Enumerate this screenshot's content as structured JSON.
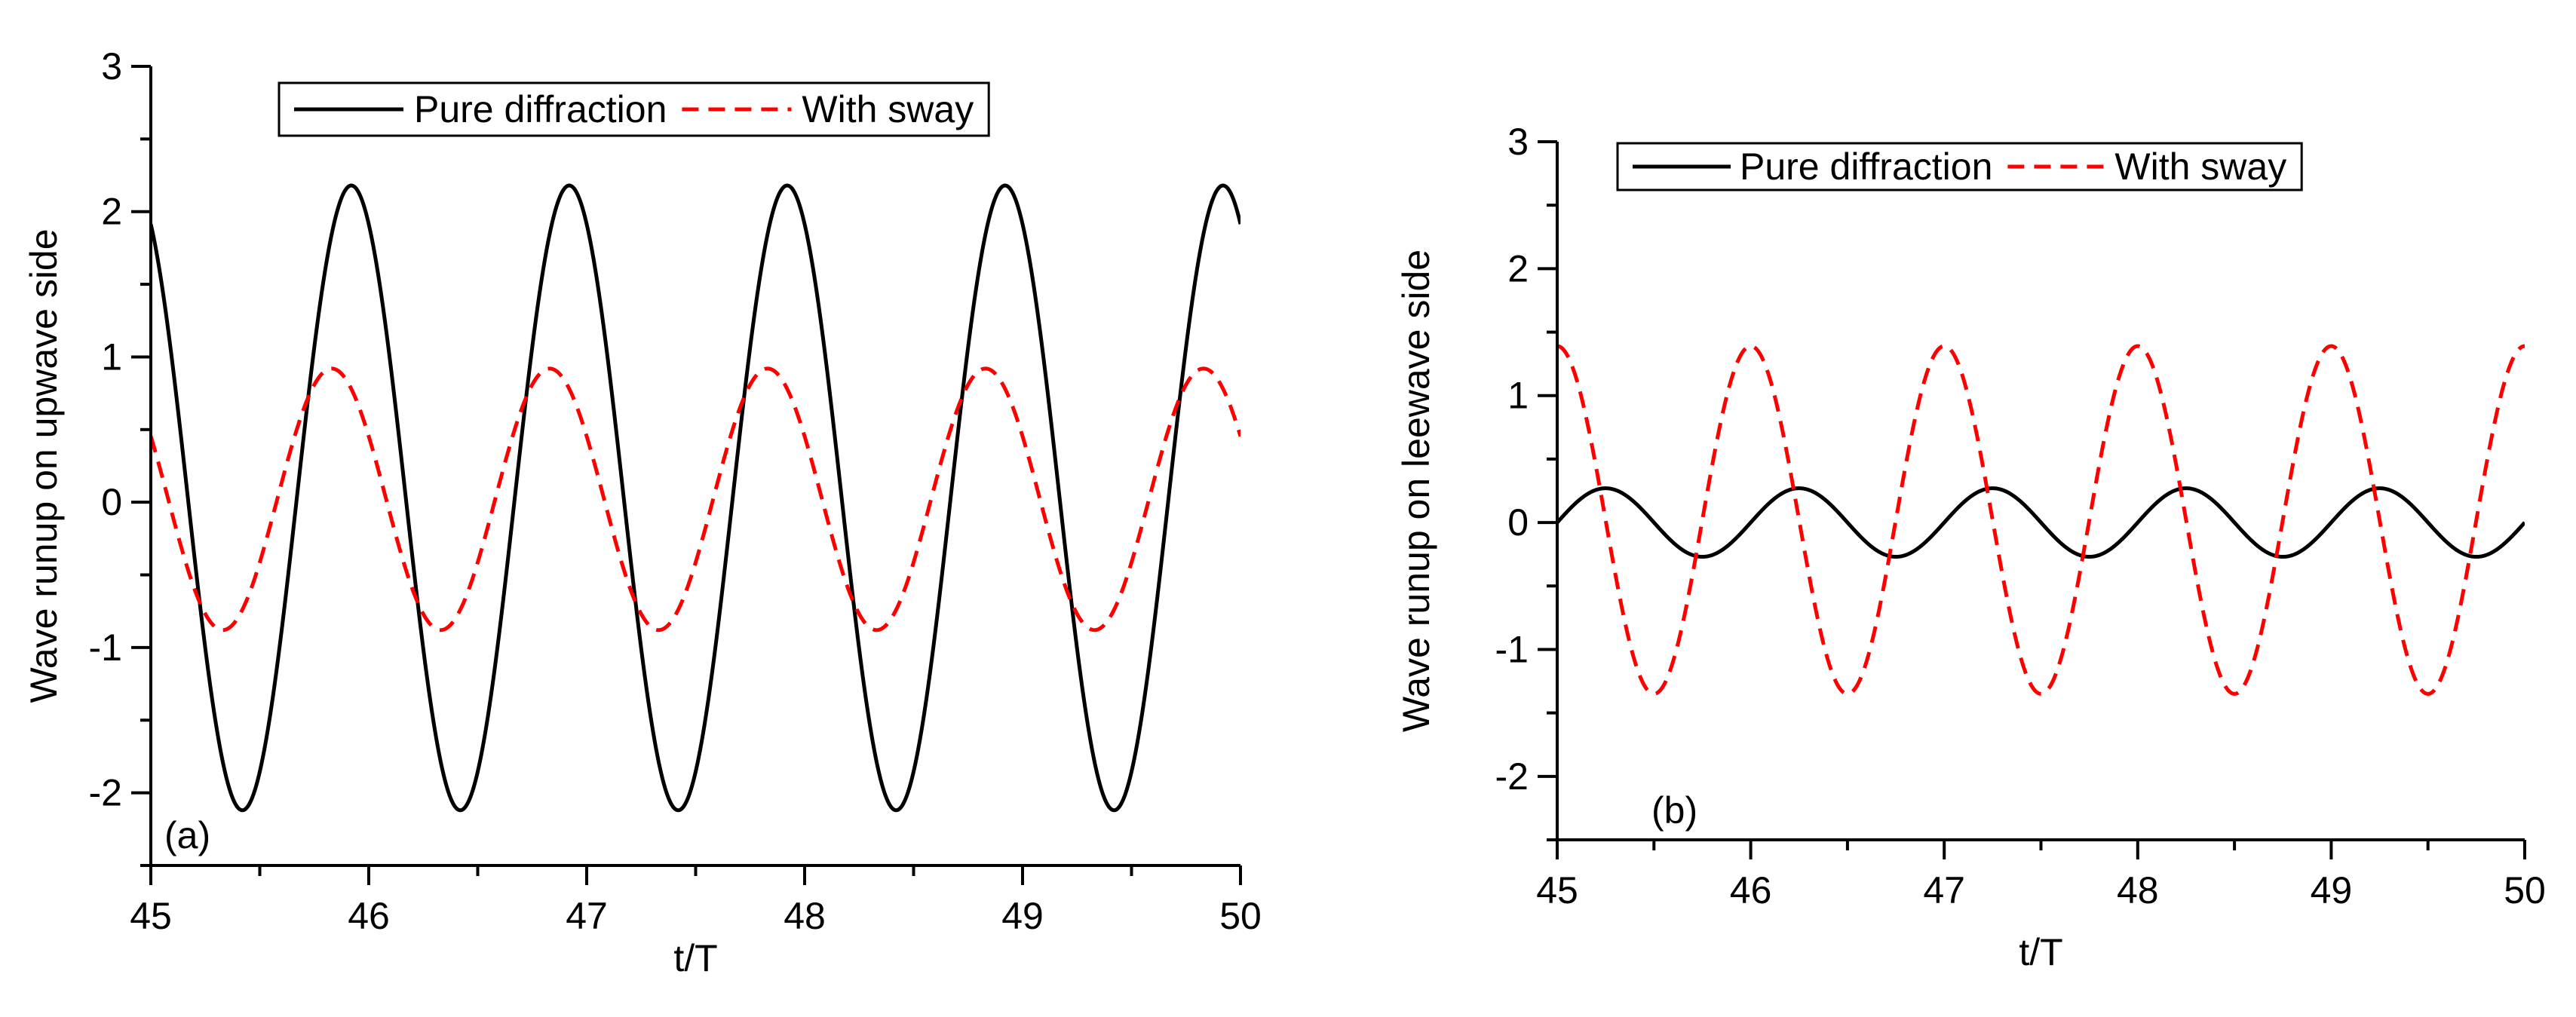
{
  "chart_data": [
    {
      "type": "line",
      "panel_label": "(a)",
      "xlabel": "t/T",
      "ylabel": "Wave runup on upwave side",
      "xlim": [
        45,
        50
      ],
      "ylim": [
        -2.5,
        3
      ],
      "x_ticks": [
        45,
        46,
        47,
        48,
        49,
        50
      ],
      "y_ticks": [
        -2,
        -1,
        0,
        1,
        2,
        3
      ],
      "legend": {
        "position": "top-center",
        "boxed": true
      },
      "series": [
        {
          "name": "Pure diffraction",
          "style": "solid",
          "color": "#000000",
          "period": 1.0,
          "amplitude": 2.15,
          "offset": 0.03,
          "peak_at": 45.92
        },
        {
          "name": "With sway",
          "style": "dashed",
          "color": "#ff0000",
          "period": 1.0,
          "amplitude": 0.9,
          "offset": 0.02,
          "peak_at": 45.83
        }
      ]
    },
    {
      "type": "line",
      "panel_label": "(b)",
      "xlabel": "t/T",
      "ylabel": "Wave runup on leewave side",
      "xlim": [
        45,
        50
      ],
      "ylim": [
        -2.5,
        3
      ],
      "x_ticks": [
        45,
        46,
        47,
        48,
        49,
        50
      ],
      "y_ticks": [
        -2,
        -1,
        0,
        1,
        2,
        3
      ],
      "legend": {
        "position": "top-center",
        "boxed": true
      },
      "series": [
        {
          "name": "Pure diffraction",
          "style": "solid",
          "color": "#000000",
          "period": 1.0,
          "amplitude": 0.27,
          "offset": 0.0,
          "peak_at": 45.25
        },
        {
          "name": "With sway",
          "style": "dashed",
          "color": "#ff0000",
          "period": 1.0,
          "amplitude": 1.37,
          "offset": 0.02,
          "peak_at": 46.0
        }
      ]
    }
  ]
}
